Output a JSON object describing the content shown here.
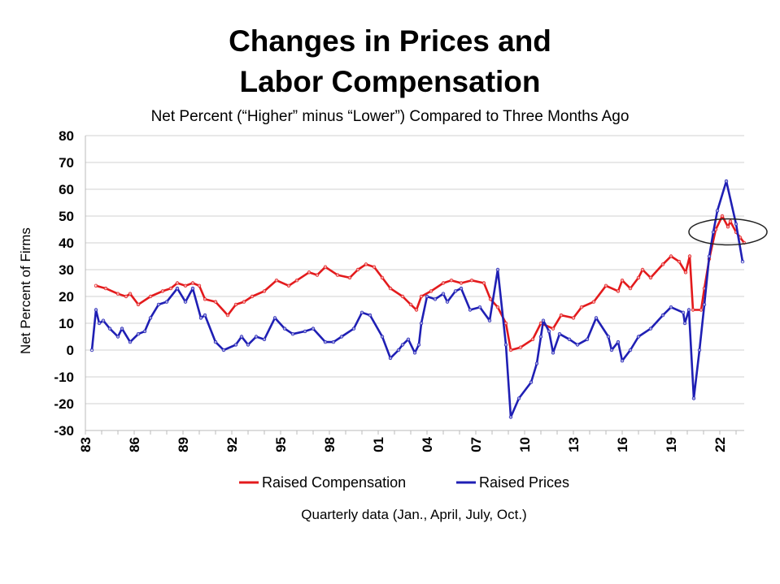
{
  "chart_data": {
    "type": "line",
    "title_line1": "Changes in Prices and",
    "title_line2": "Labor Compensation",
    "subtitle": "Net Percent (“Higher” minus “Lower”) Compared to Three Months Ago",
    "ylabel": "Net Percent of Firms",
    "xlabel": "Quarterly data (Jan., April, July, Oct.)",
    "ylim": [
      -30,
      80
    ],
    "yticks": [
      80,
      70,
      60,
      50,
      40,
      30,
      20,
      10,
      0,
      -10,
      -20,
      -30
    ],
    "xlim": [
      1983,
      2024
    ],
    "xticks": [
      {
        "x": 1983,
        "label": "83"
      },
      {
        "x": 1986,
        "label": "86"
      },
      {
        "x": 1989,
        "label": "89"
      },
      {
        "x": 1992,
        "label": "92"
      },
      {
        "x": 1995,
        "label": "95"
      },
      {
        "x": 1998,
        "label": "98"
      },
      {
        "x": 2001,
        "label": "01"
      },
      {
        "x": 2004,
        "label": "04"
      },
      {
        "x": 2007,
        "label": "07"
      },
      {
        "x": 2010,
        "label": "10"
      },
      {
        "x": 2013,
        "label": "13"
      },
      {
        "x": 2016,
        "label": "16"
      },
      {
        "x": 2019,
        "label": "19"
      },
      {
        "x": 2022,
        "label": "22"
      }
    ],
    "grid": true,
    "legend_position": "bottom",
    "annotation": {
      "type": "ellipse",
      "x": 2022.5,
      "y": 45
    },
    "series": [
      {
        "name": "Raised Compensation",
        "color": "#e31a1c",
        "x": [
          1983.65,
          1984.25,
          1985,
          1985.5,
          1985.75,
          1986.25,
          1987,
          1987.75,
          1988.25,
          1988.65,
          1989.15,
          1989.6,
          1990,
          1990.35,
          1991,
          1991.75,
          1992.25,
          1992.75,
          1993.25,
          1994,
          1994.75,
          1995.5,
          1996,
          1996.75,
          1997.25,
          1997.75,
          1998.5,
          1999.25,
          1999.75,
          2000.25,
          2000.75,
          2001.25,
          2001.75,
          2002.5,
          2003,
          2003.35,
          2003.65,
          2004.25,
          2005,
          2005.5,
          2006.1,
          2006.75,
          2007.5,
          2007.9,
          2008.35,
          2008.85,
          2009.15,
          2009.75,
          2010.5,
          2011,
          2011.75,
          2012.25,
          2013,
          2013.5,
          2014.25,
          2015,
          2015.75,
          2016,
          2016.5,
          2017,
          2017.25,
          2017.75,
          2018.5,
          2019,
          2019.5,
          2019.9,
          2020.15,
          2020.35,
          2020.85,
          2021.05,
          2021.35,
          2021.75,
          2022.15,
          2022.5,
          2022.65,
          2023,
          2023.25,
          2023.5
        ],
        "values": [
          24,
          23,
          21,
          20,
          21,
          17,
          20,
          22,
          23,
          25,
          24,
          25,
          24,
          19,
          18,
          13,
          17,
          18,
          20,
          22,
          26,
          24,
          26,
          29,
          28,
          31,
          28,
          27,
          30,
          32,
          31,
          27,
          23,
          20,
          17,
          15,
          20,
          22,
          25,
          26,
          25,
          26,
          25,
          19,
          16,
          10,
          0,
          1,
          4,
          10,
          8,
          13,
          12,
          16,
          18,
          24,
          22,
          26,
          23,
          27,
          30,
          27,
          32,
          35,
          33,
          29,
          35,
          15,
          15,
          23,
          34,
          45,
          50,
          46,
          48,
          44,
          42,
          40
        ]
      },
      {
        "name": "Raised Prices",
        "color": "#1f1fb4",
        "x": [
          1983.4,
          1983.65,
          1983.85,
          1984.1,
          1984.5,
          1985,
          1985.25,
          1985.75,
          1986.25,
          1986.65,
          1987,
          1987.5,
          1988,
          1988.65,
          1989.15,
          1989.6,
          1990.1,
          1990.35,
          1991,
          1991.5,
          1992.25,
          1992.6,
          1993,
          1993.5,
          1994,
          1994.65,
          1995.25,
          1995.75,
          1996.5,
          1997,
          1997.75,
          1998.25,
          1998.75,
          1999.5,
          2000,
          2000.5,
          2001.25,
          2001.75,
          2002.25,
          2002.5,
          2002.85,
          2003.25,
          2003.5,
          2003.65,
          2004,
          2004.5,
          2005,
          2005.25,
          2005.75,
          2006.1,
          2006.65,
          2007.25,
          2007.85,
          2008.35,
          2008.85,
          2009.15,
          2009.65,
          2010.4,
          2010.75,
          2011,
          2011.15,
          2011.5,
          2011.75,
          2012.15,
          2012.75,
          2013.25,
          2013.85,
          2014.4,
          2015.15,
          2015.35,
          2015.75,
          2016,
          2016.5,
          2017,
          2017.75,
          2018.5,
          2019,
          2019.75,
          2019.85,
          2020.1,
          2020.4,
          2020.75,
          2021.05,
          2021.35,
          2021.6,
          2021.85,
          2022.4,
          2023,
          2023.4
        ],
        "values": [
          0,
          15,
          10,
          11,
          8,
          5,
          8,
          3,
          6,
          7,
          12,
          17,
          18,
          23,
          18,
          23,
          12,
          13,
          3,
          0,
          2,
          5,
          2,
          5,
          4,
          12,
          8,
          6,
          7,
          8,
          3,
          3,
          5,
          8,
          14,
          13,
          5,
          -3,
          0,
          2,
          4,
          -1,
          2,
          10,
          20,
          19,
          21,
          18,
          22,
          23,
          15,
          16,
          11,
          30,
          2,
          -25,
          -18,
          -12,
          -5,
          5,
          11,
          7,
          -1,
          6,
          4,
          2,
          4,
          12,
          5,
          0,
          3,
          -4,
          0,
          5,
          8,
          13,
          16,
          14,
          10,
          15,
          -18,
          0,
          17,
          35,
          44,
          52,
          63,
          47,
          33
        ]
      }
    ]
  }
}
